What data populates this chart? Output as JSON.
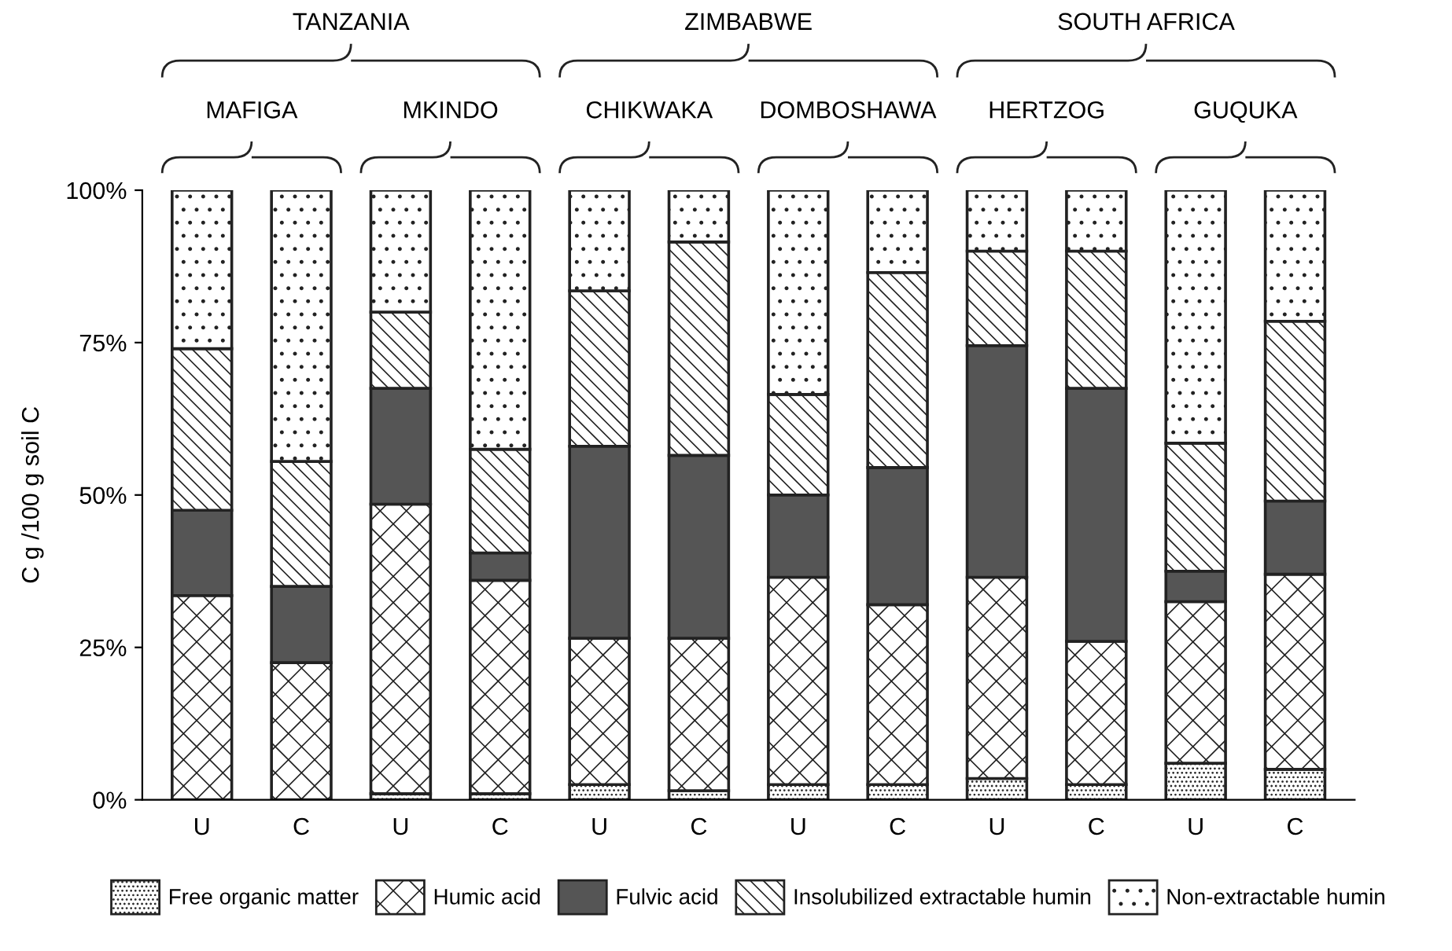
{
  "chart_data": {
    "type": "bar",
    "stacked": true,
    "ylabel": "C g /100 g soil C",
    "categories": [
      "U",
      "C",
      "U",
      "C",
      "U",
      "C",
      "U",
      "C",
      "U",
      "C",
      "U",
      "C"
    ],
    "series": [
      {
        "name": "Free organic matter",
        "color": "#222222",
        "values": [
          0,
          0,
          1,
          1,
          2.5,
          1.5,
          2.5,
          2.5,
          3.5,
          2.5,
          6,
          5
        ]
      },
      {
        "name": "Humic acid",
        "color": "#222222",
        "values": [
          33.5,
          22.5,
          47.5,
          35,
          24,
          25,
          34,
          29.5,
          33,
          23.5,
          26.5,
          32
        ]
      },
      {
        "name": "Fulvic acid",
        "color": "#555555",
        "values": [
          14,
          12.5,
          19,
          4.5,
          31.5,
          30,
          13.5,
          22.5,
          38,
          41.5,
          5,
          12
        ]
      },
      {
        "name": "Insolubilized extractable humin",
        "color": "#222222",
        "values": [
          26.5,
          20.5,
          12.5,
          17,
          25.5,
          35,
          16.5,
          32,
          15.5,
          22.5,
          21,
          29.5
        ]
      },
      {
        "name": "Non-extractable humin",
        "color": "#222222",
        "values": [
          26,
          44.5,
          20,
          42.5,
          16.5,
          8.5,
          33.5,
          13.5,
          10,
          10,
          41.5,
          21.5
        ]
      }
    ],
    "ylim": [
      0,
      100
    ],
    "yticks": [
      {
        "value": 0,
        "label": "0%"
      },
      {
        "value": 25,
        "label": "25%"
      },
      {
        "value": 50,
        "label": "50%"
      },
      {
        "value": 75,
        "label": "75%"
      },
      {
        "value": 100,
        "label": "100%"
      }
    ],
    "grid": false,
    "legend": "bottom",
    "annotations": [
      "MAFIGA",
      "MKINDO",
      "CHIKWAKA",
      "DOMBOSHAWA",
      "HERTZOG",
      "GUQUKA",
      "TANZANIA",
      "ZIMBABWE",
      "SOUTH AFRICA"
    ]
  }
}
